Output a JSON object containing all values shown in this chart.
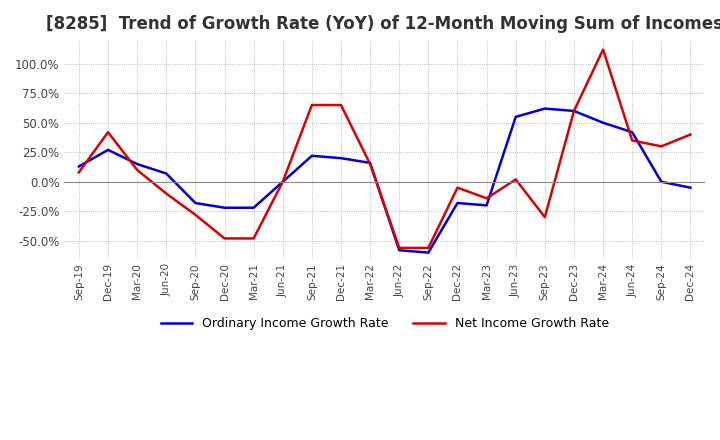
{
  "title": "[8285]  Trend of Growth Rate (YoY) of 12-Month Moving Sum of Incomes",
  "title_fontsize": 12,
  "ylim": [
    -0.65,
    1.2
  ],
  "yticks": [
    -0.5,
    -0.25,
    0.0,
    0.25,
    0.5,
    0.75,
    1.0
  ],
  "background_color": "#ffffff",
  "grid_color": "#aaaaaa",
  "x_labels": [
    "Sep-19",
    "Dec-19",
    "Mar-20",
    "Jun-20",
    "Sep-20",
    "Dec-20",
    "Mar-21",
    "Jun-21",
    "Sep-21",
    "Dec-21",
    "Mar-22",
    "Jun-22",
    "Sep-22",
    "Dec-22",
    "Mar-23",
    "Jun-23",
    "Sep-23",
    "Dec-23",
    "Mar-24",
    "Jun-24",
    "Sep-24",
    "Dec-24"
  ],
  "ordinary_income": [
    0.13,
    0.27,
    0.15,
    0.07,
    -0.18,
    -0.22,
    -0.22,
    0.0,
    0.22,
    0.2,
    0.16,
    -0.58,
    -0.6,
    -0.18,
    -0.2,
    0.55,
    0.62,
    0.6,
    0.5,
    0.42,
    0.0,
    -0.05
  ],
  "net_income": [
    0.08,
    0.42,
    0.1,
    -0.1,
    -0.28,
    -0.48,
    -0.48,
    0.0,
    0.65,
    0.65,
    0.15,
    -0.56,
    -0.56,
    -0.05,
    -0.14,
    0.02,
    -0.3,
    0.6,
    1.12,
    0.35,
    0.3,
    0.4
  ],
  "ordinary_color": "#0000dd",
  "net_color": "#dd0000",
  "line_width": 1.8,
  "legend_ordinary": "Ordinary Income Growth Rate",
  "legend_net": "Net Income Growth Rate"
}
